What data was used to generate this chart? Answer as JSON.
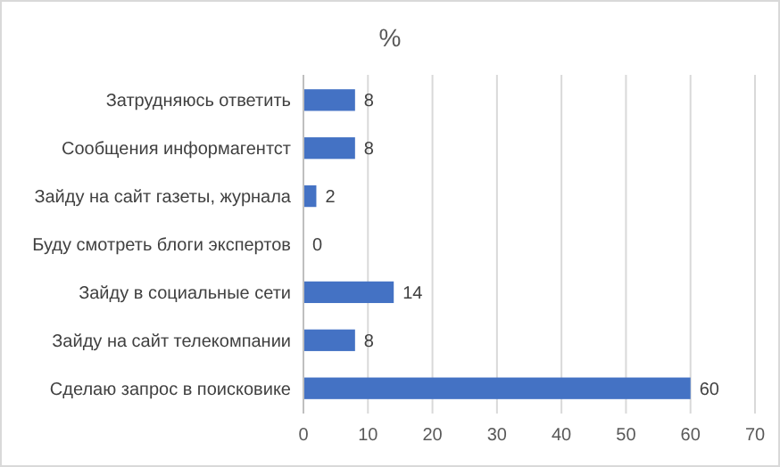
{
  "chart_data": {
    "type": "bar",
    "title": "%",
    "orientation": "horizontal",
    "categories": [
      "Затрудняюсь ответить",
      "Сообщения информагентст",
      "Зайду на сайт газеты, журнала",
      "Буду смотреть блоги экспертов",
      "Зайду в социальные сети",
      "Зайду на сайт телекомпании",
      "Сделаю запрос в поисковике"
    ],
    "values": [
      8,
      8,
      2,
      0,
      14,
      8,
      60
    ],
    "color": "#4472c4",
    "xlim": [
      0,
      70
    ],
    "xticks": [
      0,
      10,
      20,
      30,
      40,
      50,
      60,
      70
    ],
    "grid": "x",
    "data_labels": true
  }
}
